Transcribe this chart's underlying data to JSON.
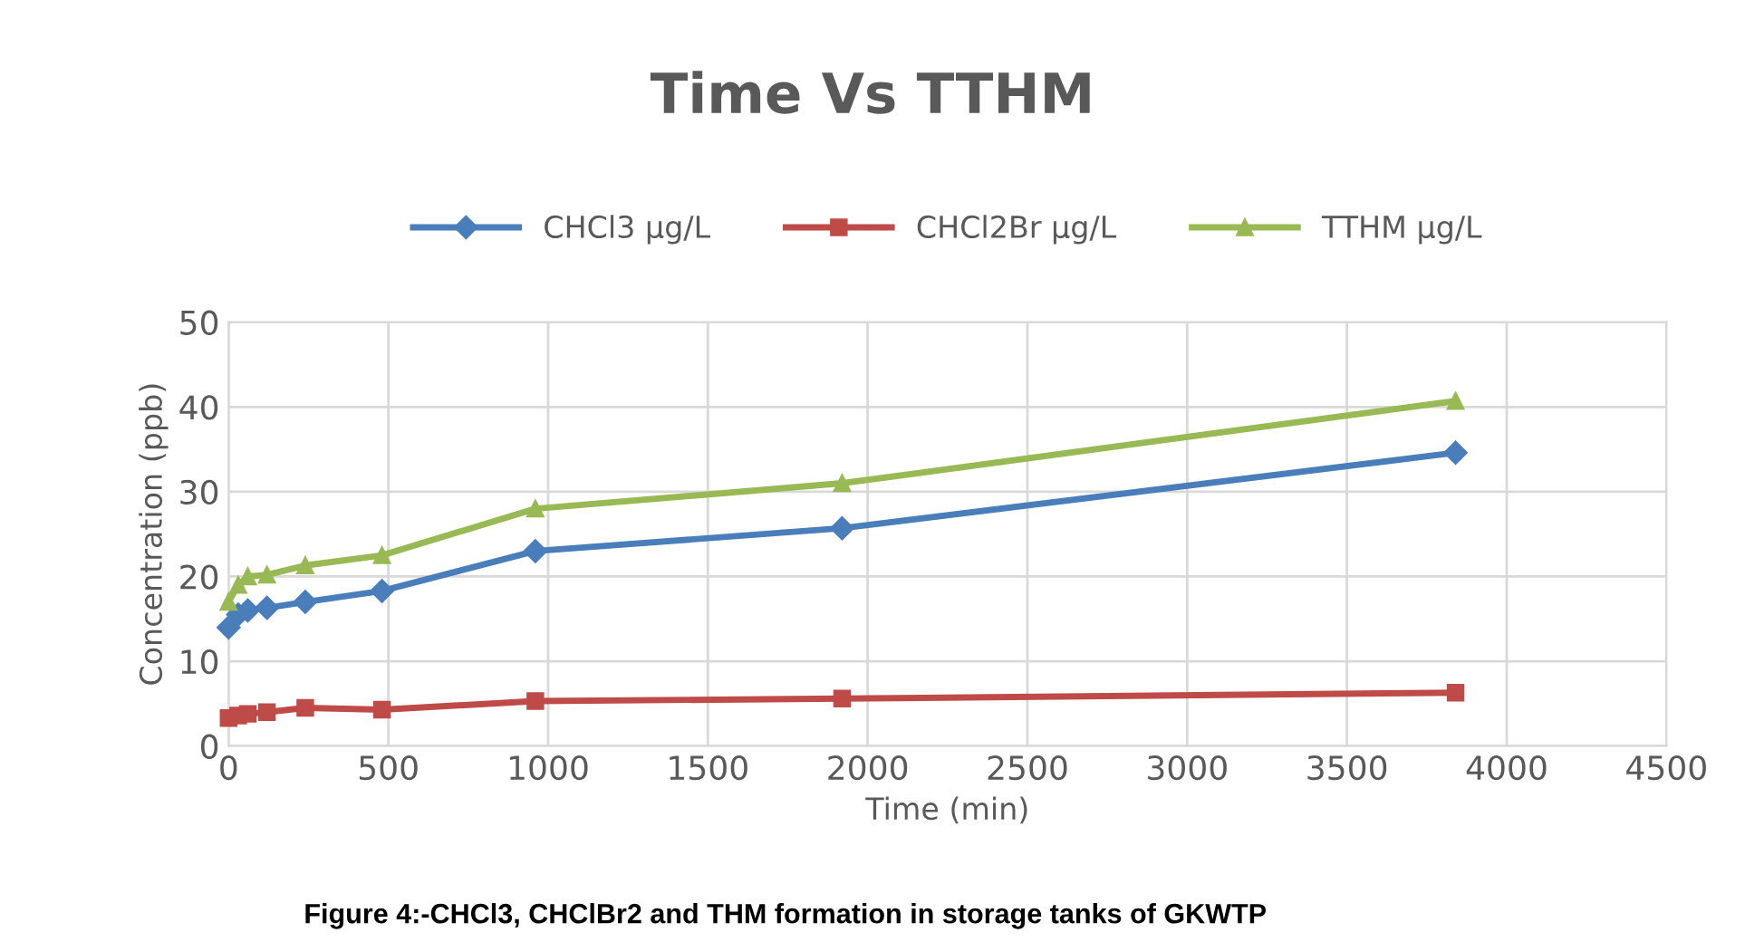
{
  "chart_data": {
    "type": "line",
    "title": "Time Vs TTHM",
    "xlabel": "Time (min)",
    "ylabel": "Concentration (ppb)",
    "annotations": [
      "Figure 4:-CHCl3, CHClBr2 and THM formation in storage tanks of GKWTP"
    ],
    "x": [
      0,
      30,
      60,
      120,
      240,
      480,
      960,
      1920,
      3840
    ],
    "series": [
      {
        "name": "CHCl3 µg/L",
        "color": "#4a7ebb",
        "marker": "diamond",
        "values": [
          14,
          15.5,
          16,
          16.3,
          17,
          18.3,
          23,
          25.7,
          34.6
        ]
      },
      {
        "name": "CHCl2Br µg/L",
        "color": "#be4b48",
        "marker": "square",
        "values": [
          3.3,
          3.6,
          3.8,
          4.0,
          4.5,
          4.3,
          5.3,
          5.6,
          6.3
        ]
      },
      {
        "name": "TTHM µg/L",
        "color": "#98b954",
        "marker": "triangle",
        "values": [
          17,
          19,
          20,
          20.2,
          21.3,
          22.5,
          28,
          31,
          40.7
        ]
      }
    ],
    "xlim": [
      0,
      4500
    ],
    "xticks": [
      0,
      500,
      1000,
      1500,
      2000,
      2500,
      3000,
      3500,
      4000,
      4500
    ],
    "ylim": [
      0,
      50
    ],
    "yticks": [
      0,
      10,
      20,
      30,
      40,
      50
    ],
    "grid": true,
    "legend": "top",
    "line_style": "solid"
  }
}
